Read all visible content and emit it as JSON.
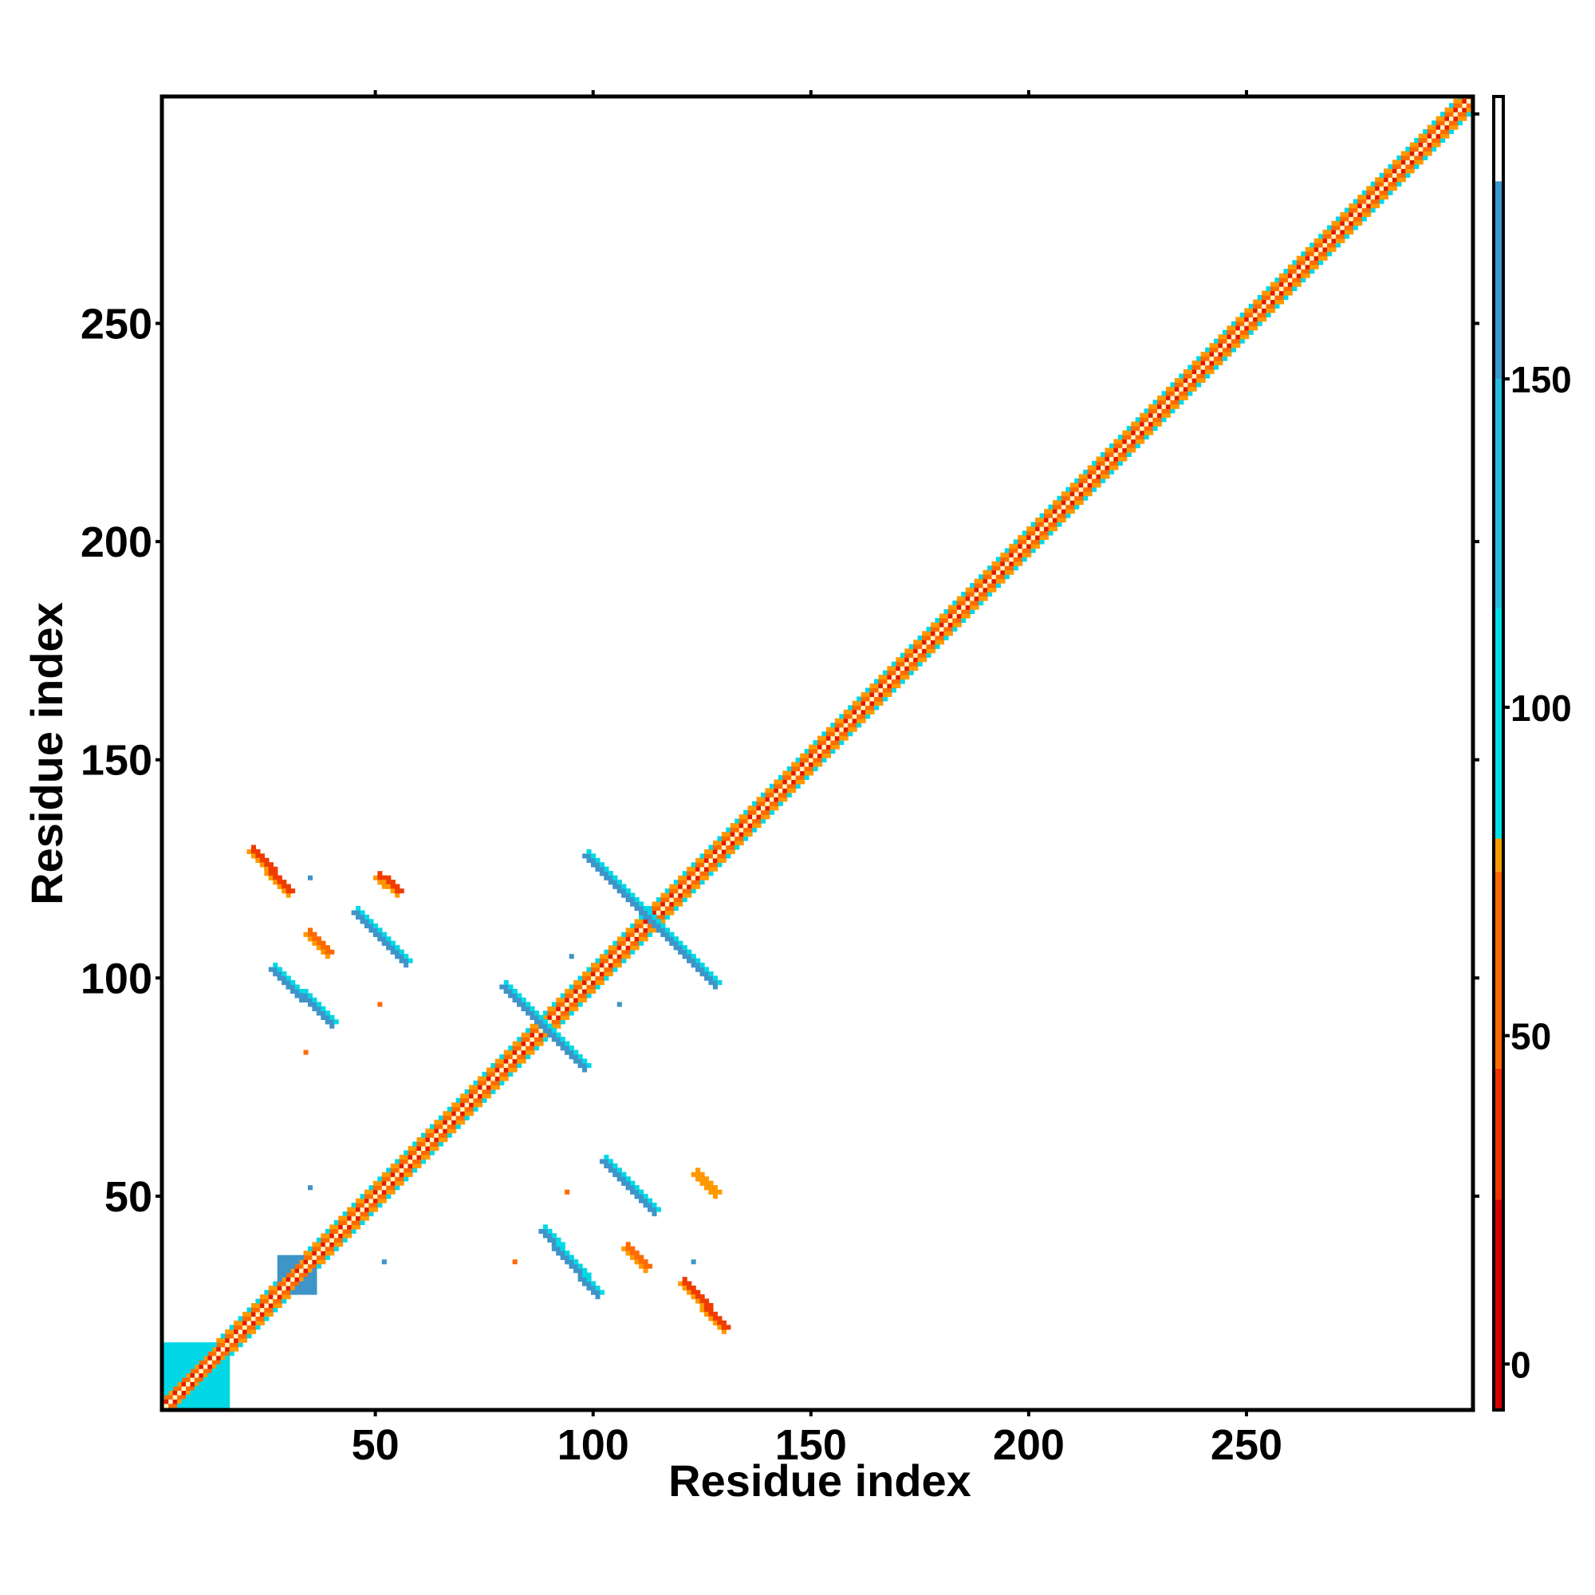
{
  "chart_data": {
    "type": "heatmap",
    "title": "",
    "xlabel": "Residue index",
    "ylabel": "Residue index",
    "xlim": [
      1,
      302
    ],
    "ylim": [
      1,
      302
    ],
    "xticks": [
      50,
      100,
      150,
      200,
      250
    ],
    "yticks": [
      50,
      100,
      150,
      200,
      250
    ],
    "grid": false,
    "colorbar": {
      "range": [
        -7,
        193
      ],
      "ticks": [
        0,
        50,
        100,
        150
      ],
      "bands": [
        {
          "from": -7,
          "to": 30,
          "color": "#e01a00"
        },
        {
          "from": 30,
          "to": 80,
          "color": "#ff6a00"
        },
        {
          "from": 80,
          "to": 180,
          "color": "#00ccdd"
        },
        {
          "from": 180,
          "to": 193,
          "color": "#ffffff"
        }
      ],
      "gradient_stops": [
        {
          "value": -7,
          "color": "#d40000"
        },
        {
          "value": 25,
          "color": "#f03000"
        },
        {
          "value": 45,
          "color": "#ff6a00"
        },
        {
          "value": 75,
          "color": "#ff9900"
        },
        {
          "value": 80,
          "color": "#00e0e8"
        },
        {
          "value": 115,
          "color": "#22bde0"
        },
        {
          "value": 150,
          "color": "#3a9ad0"
        },
        {
          "value": 180,
          "color": "#5a7fb8"
        },
        {
          "value": 180.1,
          "color": "#ffffff"
        },
        {
          "value": 193,
          "color": "#ffffff"
        }
      ]
    },
    "diagonal": {
      "from": 1,
      "to": 302,
      "colors": [
        "#e01a00",
        "#ff6a00",
        "#ff9900",
        "#00d8e6"
      ]
    },
    "features": [
      {
        "kind": "antiparallel",
        "x": [
          22,
          30
        ],
        "y": [
          129,
          120
        ],
        "color": "#f03c00"
      },
      {
        "kind": "antiparallel",
        "x": [
          121,
          130
        ],
        "y": [
          30,
          20
        ],
        "color": "#f03c00"
      },
      {
        "kind": "antiparallel",
        "x": [
          27,
          40
        ],
        "y": [
          102,
          90
        ],
        "color": "#3f94c8"
      },
      {
        "kind": "antiparallel",
        "x": [
          89,
          101
        ],
        "y": [
          42,
          28
        ],
        "color": "#3f94c8"
      },
      {
        "kind": "antiparallel",
        "x": [
          46,
          57
        ],
        "y": [
          115,
          104
        ],
        "color": "#3f94c8"
      },
      {
        "kind": "antiparallel",
        "x": [
          103,
          114
        ],
        "y": [
          58,
          47
        ],
        "color": "#3f94c8"
      },
      {
        "kind": "antiparallel",
        "x": [
          80,
          98
        ],
        "y": [
          98,
          80
        ],
        "color": "#3f94c8"
      },
      {
        "kind": "antiparallel",
        "x": [
          99,
          128
        ],
        "y": [
          128,
          99
        ],
        "color": "#3f94c8"
      },
      {
        "kind": "patch",
        "x": [
          28,
          36
        ],
        "y": [
          28,
          36
        ],
        "color": "#3f94c8"
      },
      {
        "kind": "patch",
        "x": [
          1,
          16
        ],
        "y": [
          1,
          16
        ],
        "color": "#00d8e6"
      },
      {
        "kind": "antiparallel",
        "x": [
          51,
          55
        ],
        "y": [
          123,
          120
        ],
        "color": "#f03c00"
      },
      {
        "kind": "antiparallel",
        "x": [
          124,
          128
        ],
        "y": [
          55,
          51
        ],
        "color": "#ff9900"
      },
      {
        "kind": "antiparallel",
        "x": [
          35,
          39
        ],
        "y": [
          110,
          106
        ],
        "color": "#ff6a00"
      },
      {
        "kind": "antiparallel",
        "x": [
          108,
          112
        ],
        "y": [
          38,
          34
        ],
        "color": "#ff6a00"
      },
      {
        "kind": "point",
        "x": 51,
        "y": 94,
        "color": "#ff6a00"
      },
      {
        "kind": "point",
        "x": 94,
        "y": 51,
        "color": "#ff6a00"
      },
      {
        "kind": "point",
        "x": 34,
        "y": 83,
        "color": "#ff6a00"
      },
      {
        "kind": "point",
        "x": 82,
        "y": 35,
        "color": "#ff6a00"
      },
      {
        "kind": "point",
        "x": 35,
        "y": 123,
        "color": "#3f94c8"
      },
      {
        "kind": "point",
        "x": 123,
        "y": 35,
        "color": "#3f94c8"
      },
      {
        "kind": "point",
        "x": 106,
        "y": 94,
        "color": "#3f94c8"
      },
      {
        "kind": "point",
        "x": 95,
        "y": 105,
        "color": "#3f94c8"
      },
      {
        "kind": "point",
        "x": 35,
        "y": 52,
        "color": "#3f94c8"
      },
      {
        "kind": "point",
        "x": 52,
        "y": 35,
        "color": "#3f94c8"
      }
    ]
  }
}
